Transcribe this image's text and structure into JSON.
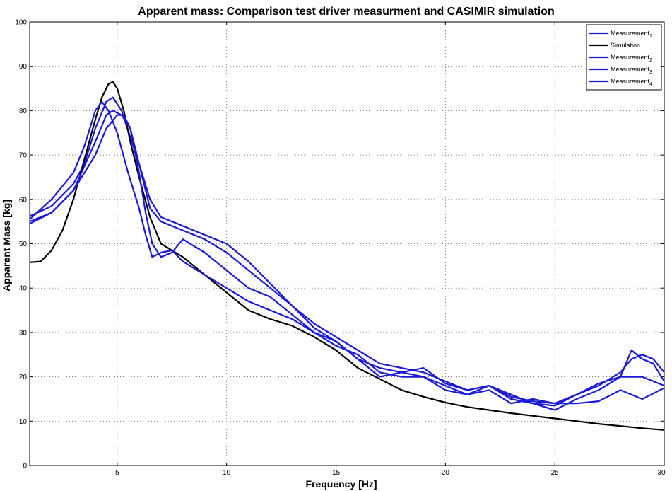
{
  "chart_data": {
    "type": "line",
    "title": "Apparent mass: Comparison test driver measurment and CASIMIR simulation",
    "xlabel": "Frequency [Hz]",
    "ylabel": "Apparent Mass [kg]",
    "xlim": [
      1,
      30
    ],
    "ylim": [
      0,
      100
    ],
    "xticks": [
      5,
      10,
      15,
      20,
      25,
      30
    ],
    "yticks": [
      0,
      10,
      20,
      30,
      40,
      50,
      60,
      70,
      80,
      90,
      100
    ],
    "ytick_labels": [
      "0",
      "10",
      "20",
      "30",
      "40",
      "50",
      "60",
      "70",
      "80",
      "90",
      "100"
    ],
    "grid": true,
    "legend_position": "top-right",
    "legend": [
      {
        "label": "Measurement",
        "sub": "1"
      },
      {
        "label": "Simulation",
        "sub": ""
      },
      {
        "label": "Measurement",
        "sub": "2"
      },
      {
        "label": "Measurement",
        "sub": "3"
      },
      {
        "label": "Measurement",
        "sub": "4"
      }
    ],
    "colors": {
      "measurement": "#1a1ad6",
      "simulation": "#000000"
    },
    "series": [
      {
        "name": "Measurement1",
        "color": "#1a1ad6",
        "x": [
          1,
          2,
          3,
          3.5,
          4,
          4.5,
          4.8,
          5.2,
          6,
          6.5,
          7,
          7.5,
          8,
          9,
          10,
          11,
          12,
          13,
          14,
          15,
          16,
          17,
          18,
          19,
          20,
          21,
          22,
          23,
          24,
          25,
          26,
          27,
          28,
          28.5,
          29,
          29.5,
          30
        ],
        "y": [
          56.2,
          58.5,
          63.5,
          68,
          76,
          82,
          83,
          80,
          68,
          58,
          55,
          54,
          53,
          51,
          48,
          44,
          40,
          36,
          31,
          28,
          24,
          22,
          21,
          22,
          18.5,
          17,
          18,
          15.5,
          14.5,
          14,
          16,
          18,
          21,
          24,
          25,
          24,
          21
        ]
      },
      {
        "name": "Simulation",
        "color": "#000000",
        "x": [
          1,
          1.5,
          2,
          2.5,
          3,
          3.5,
          4,
          4.3,
          4.6,
          4.8,
          5,
          5.3,
          5.6,
          6,
          6.5,
          7,
          7.5,
          8,
          9,
          10,
          11,
          12,
          13,
          14,
          15,
          16,
          17,
          18,
          19,
          20,
          21,
          22,
          23,
          24,
          25,
          26,
          27,
          28,
          29,
          30
        ],
        "y": [
          45.8,
          46,
          48.5,
          53,
          60,
          69,
          78,
          83,
          86,
          86.5,
          85,
          80,
          73,
          65,
          56,
          50,
          48.5,
          47,
          43,
          39,
          35,
          33,
          31.5,
          29,
          26,
          22,
          19.5,
          17,
          15.5,
          14.2,
          13.2,
          12.5,
          11.8,
          11.2,
          10.6,
          10,
          9.4,
          8.9,
          8.4,
          8
        ]
      },
      {
        "name": "Measurement2",
        "color": "#1a1ad6",
        "x": [
          1,
          2,
          3,
          4,
          4.5,
          4.8,
          5.2,
          5.6,
          6,
          6.5,
          7,
          7.5,
          8,
          9,
          10,
          11,
          12,
          13,
          14,
          15,
          16,
          17,
          18,
          19,
          20,
          21,
          22,
          23,
          24,
          25,
          26,
          27,
          28,
          29,
          30
        ],
        "y": [
          54.5,
          57,
          62,
          73,
          79,
          80,
          79,
          76,
          68,
          60,
          56,
          55,
          54,
          52,
          50,
          46,
          41,
          36,
          32,
          29,
          26,
          23,
          22,
          21,
          19,
          17,
          18,
          16,
          14,
          13.5,
          16,
          18.5,
          20,
          20,
          18
        ]
      },
      {
        "name": "Measurement3",
        "color": "#1a1ad6",
        "x": [
          1,
          2,
          3,
          4,
          4.5,
          5,
          5.3,
          5.6,
          6,
          6.3,
          6.6,
          7,
          7.5,
          8,
          9,
          10,
          11,
          12,
          13,
          14,
          15,
          16,
          17,
          18,
          19,
          20,
          21,
          22,
          23,
          24,
          25,
          26,
          27,
          28,
          28.5,
          29,
          29.5,
          30
        ],
        "y": [
          55,
          57,
          62,
          70,
          76,
          79,
          79,
          76,
          66,
          57,
          50,
          47,
          48,
          51,
          48,
          44,
          40,
          38,
          34,
          30,
          27,
          25,
          21,
          20,
          20,
          17,
          16,
          18,
          15,
          14,
          12.5,
          15,
          17,
          20,
          26,
          24,
          23,
          19
        ]
      },
      {
        "name": "Measurement4",
        "color": "#1a1ad6",
        "x": [
          1,
          2,
          3,
          3.5,
          4,
          4.3,
          4.6,
          5,
          5.5,
          6,
          6.3,
          6.6,
          7,
          7.5,
          8,
          9,
          10,
          11,
          12,
          13,
          14,
          15,
          16,
          17,
          18,
          19,
          20,
          21,
          22,
          23,
          24,
          25,
          26,
          27,
          28,
          29,
          30
        ],
        "y": [
          55.5,
          60,
          66,
          72,
          80,
          82,
          80,
          75,
          66,
          58,
          52,
          47,
          48,
          48.5,
          46,
          43,
          40,
          37,
          35,
          33,
          30,
          28,
          24,
          20,
          21,
          20,
          18,
          16,
          17,
          14,
          15,
          14,
          14,
          14.5,
          17,
          15,
          17.5
        ]
      }
    ]
  }
}
